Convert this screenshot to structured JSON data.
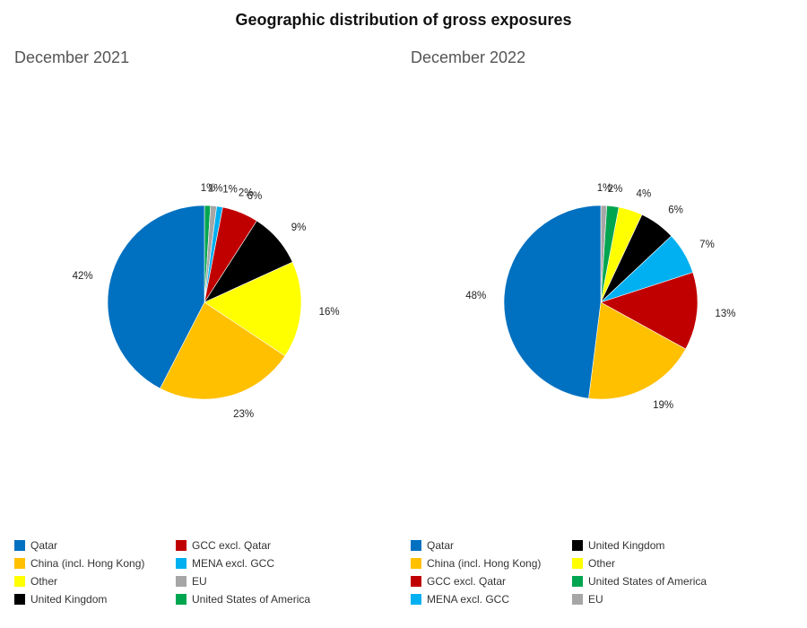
{
  "chart_data": {
    "title": "Geographic distribution of gross exposures",
    "charts": [
      {
        "type": "pie",
        "subtitle": "December 2021",
        "slices": [
          {
            "name": "United States of America",
            "value": 1,
            "label": "1%",
            "color": "#00A550"
          },
          {
            "name": "EU",
            "value": 1,
            "label": "1%",
            "color": "#A6A6A6"
          },
          {
            "name": "MENA excl. GCC",
            "value": 1,
            "label": "1%",
            "color": "#00B0F0"
          },
          {
            "name": "GCC excl. Qatar",
            "value": 6,
            "label": "6%",
            "color": "#C00000"
          },
          {
            "name": "United Kingdom",
            "value": 9,
            "label": "9%",
            "color": "#000000"
          },
          {
            "name": "Other",
            "value": 16,
            "label": "16%",
            "color": "#FFFF00"
          },
          {
            "name": "China (incl. Hong Kong)",
            "value": 23,
            "label": "23%",
            "color": "#FFC000"
          },
          {
            "name": "Qatar",
            "value": 42,
            "label": "42%",
            "color": "#0070C0"
          }
        ],
        "extra_labels": [
          "2%"
        ],
        "legend": [
          {
            "name": "Qatar",
            "color": "#0070C0"
          },
          {
            "name": "China (incl. Hong Kong)",
            "color": "#FFC000"
          },
          {
            "name": "Other",
            "color": "#FFFF00"
          },
          {
            "name": "United Kingdom",
            "color": "#000000"
          },
          {
            "name": "GCC excl. Qatar",
            "color": "#C00000"
          },
          {
            "name": "MENA excl. GCC",
            "color": "#00B0F0"
          },
          {
            "name": "EU",
            "color": "#A6A6A6"
          },
          {
            "name": "United States of America",
            "color": "#00A550"
          }
        ]
      },
      {
        "type": "pie",
        "subtitle": "December 2022",
        "slices": [
          {
            "name": "EU",
            "value": 1,
            "label": "1%",
            "color": "#A6A6A6"
          },
          {
            "name": "United States of America",
            "value": 2,
            "label": "2%",
            "color": "#00A550"
          },
          {
            "name": "Other",
            "value": 4,
            "label": "4%",
            "color": "#FFFF00"
          },
          {
            "name": "United Kingdom",
            "value": 6,
            "label": "6%",
            "color": "#000000"
          },
          {
            "name": "MENA excl. GCC",
            "value": 7,
            "label": "7%",
            "color": "#00B0F0"
          },
          {
            "name": "GCC excl. Qatar",
            "value": 13,
            "label": "13%",
            "color": "#C00000"
          },
          {
            "name": "China (incl. Hong Kong)",
            "value": 19,
            "label": "19%",
            "color": "#FFC000"
          },
          {
            "name": "Qatar",
            "value": 48,
            "label": "48%",
            "color": "#0070C0"
          }
        ],
        "legend": [
          {
            "name": "Qatar",
            "color": "#0070C0"
          },
          {
            "name": "China (incl. Hong Kong)",
            "color": "#FFC000"
          },
          {
            "name": "GCC excl. Qatar",
            "color": "#C00000"
          },
          {
            "name": "MENA excl. GCC",
            "color": "#00B0F0"
          },
          {
            "name": "United Kingdom",
            "color": "#000000"
          },
          {
            "name": "Other",
            "color": "#FFFF00"
          },
          {
            "name": "United States of America",
            "color": "#00A550"
          },
          {
            "name": "EU",
            "color": "#A6A6A6"
          }
        ]
      }
    ]
  }
}
